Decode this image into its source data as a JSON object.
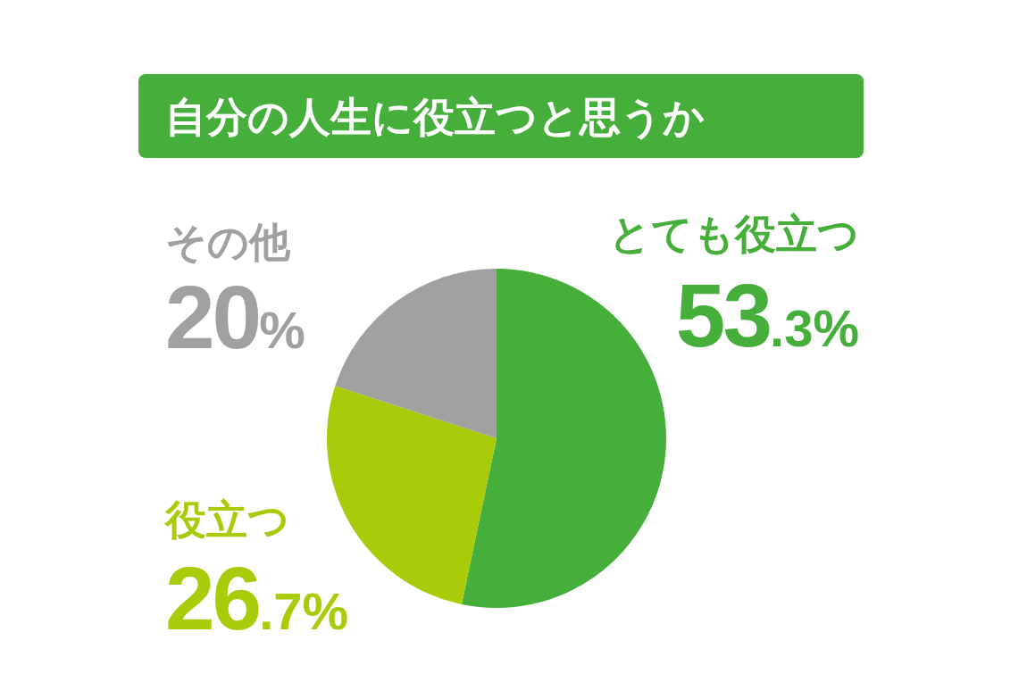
{
  "chart_data": {
    "type": "pie",
    "title": "自分の人生に役立つと思うか",
    "categories": [
      "とても役立つ",
      "役立つ",
      "その他"
    ],
    "values": [
      53.3,
      26.7,
      20
    ],
    "colors": [
      "#46ae3a",
      "#a8cc0a",
      "#a0a0a0"
    ],
    "value_labels": [
      "53.3%",
      "26.7%",
      "20%"
    ]
  }
}
